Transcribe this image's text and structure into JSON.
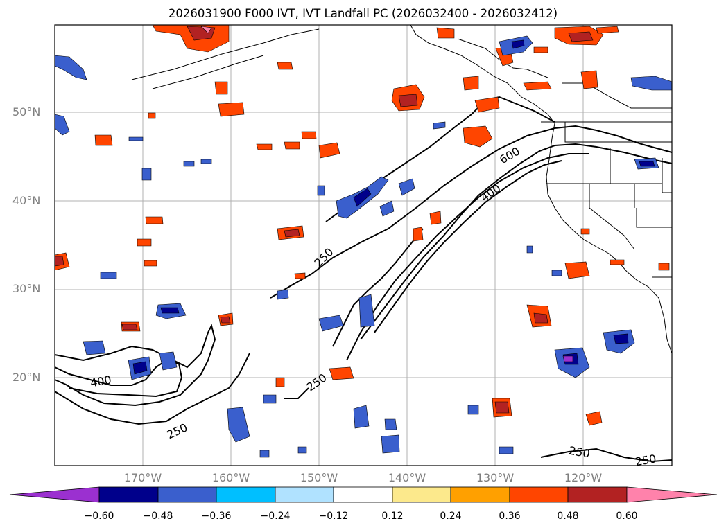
{
  "title": "2026031900 F000 IVT, IVT Landfall PC (2026032400 - 2026032412)",
  "map": {
    "lat_labels": [
      "50°N",
      "40°N",
      "30°N",
      "20°N"
    ],
    "lon_labels": [
      "170°W",
      "160°W",
      "150°W",
      "140°W",
      "130°W",
      "120°W"
    ],
    "contour_labels": [
      "250",
      "400",
      "600",
      "400",
      "250",
      "250",
      "250",
      "250"
    ]
  },
  "colorbar": {
    "ticks": [
      "−0.60",
      "−0.48",
      "−0.36",
      "−0.24",
      "−0.12",
      "0.12",
      "0.24",
      "0.36",
      "0.48",
      "0.60"
    ],
    "colors": [
      "#9b30d0",
      "#00008b",
      "#3a5fcd",
      "#00bfff",
      "#b0e2ff",
      "#ffffff",
      "#fce98c",
      "#ffa000",
      "#ff4500",
      "#b22222",
      "#ff82ab"
    ]
  }
}
